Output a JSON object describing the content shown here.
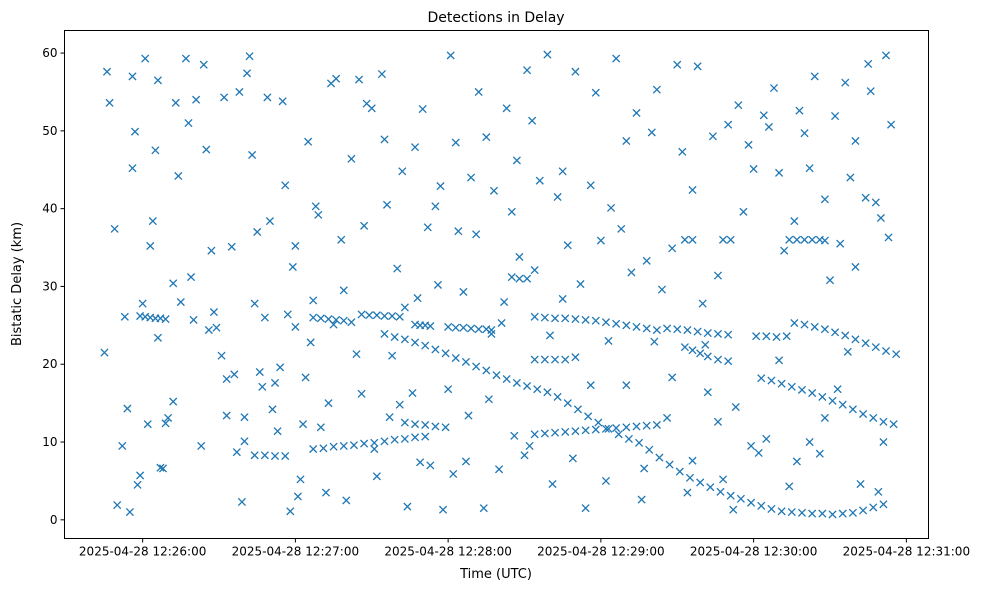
{
  "chart_data": {
    "type": "scatter",
    "title": "Detections in Delay",
    "xlabel": "Time (UTC)",
    "ylabel": "Bistatic Delay (km)",
    "x_units": "seconds after 2025-04-28 12:26:00",
    "xlim": [
      -30.7,
      308.7
    ],
    "ylim": [
      -2.4,
      62.9
    ],
    "grid": false,
    "marker": "x",
    "color": "#1f77b4",
    "x_ticks": [
      {
        "value": 0,
        "label": "2025-04-28 12:26:00"
      },
      {
        "value": 60,
        "label": "2025-04-28 12:27:00"
      },
      {
        "value": 120,
        "label": "2025-04-28 12:28:00"
      },
      {
        "value": 180,
        "label": "2025-04-28 12:29:00"
      },
      {
        "value": 240,
        "label": "2025-04-28 12:30:00"
      },
      {
        "value": 300,
        "label": "2025-04-28 12:31:00"
      }
    ],
    "y_ticks": [
      {
        "value": 0,
        "label": "0"
      },
      {
        "value": 10,
        "label": "10"
      },
      {
        "value": 20,
        "label": "20"
      },
      {
        "value": 30,
        "label": "30"
      },
      {
        "value": 40,
        "label": "40"
      },
      {
        "value": 50,
        "label": "50"
      },
      {
        "value": 60,
        "label": "60"
      }
    ],
    "points": [
      [
        95,
        23.9
      ],
      [
        99,
        23.5
      ],
      [
        103,
        23.2
      ],
      [
        107,
        22.8
      ],
      [
        111,
        22.4
      ],
      [
        115,
        21.9
      ],
      [
        119,
        21.4
      ],
      [
        123,
        20.8
      ],
      [
        127,
        20.3
      ],
      [
        131,
        19.7
      ],
      [
        135,
        19.2
      ],
      [
        139,
        18.6
      ],
      [
        143,
        18.1
      ],
      [
        147,
        17.6
      ],
      [
        151,
        17.2
      ],
      [
        155,
        16.8
      ],
      [
        159,
        16.4
      ],
      [
        163,
        15.8
      ],
      [
        167,
        15.0
      ],
      [
        171,
        14.2
      ],
      [
        175,
        13.3
      ],
      [
        179,
        12.5
      ],
      [
        183,
        11.7
      ],
      [
        187,
        11.0
      ],
      [
        191,
        10.4
      ],
      [
        195,
        9.9
      ],
      [
        199,
        9.0
      ],
      [
        203,
        8.0
      ],
      [
        207,
        7.1
      ],
      [
        211,
        6.2
      ],
      [
        215,
        5.4
      ],
      [
        219,
        4.8
      ],
      [
        223,
        4.2
      ],
      [
        227,
        3.6
      ],
      [
        231,
        3.1
      ],
      [
        235,
        2.7
      ],
      [
        239,
        2.2
      ],
      [
        243,
        1.8
      ],
      [
        247,
        1.4
      ],
      [
        251,
        1.1
      ],
      [
        255,
        1.0
      ],
      [
        259,
        0.9
      ],
      [
        263,
        0.8
      ],
      [
        267,
        0.8
      ],
      [
        271,
        0.7
      ],
      [
        275,
        0.8
      ],
      [
        279,
        0.9
      ],
      [
        283,
        1.2
      ],
      [
        287,
        1.6
      ],
      [
        291,
        2.0
      ],
      [
        154,
        11.0
      ],
      [
        158,
        11.1
      ],
      [
        162,
        11.2
      ],
      [
        166,
        11.3
      ],
      [
        170,
        11.4
      ],
      [
        174,
        11.5
      ],
      [
        178,
        11.6
      ],
      [
        182,
        11.7
      ],
      [
        186,
        11.8
      ],
      [
        190,
        11.9
      ],
      [
        194,
        12.0
      ],
      [
        198,
        12.1
      ],
      [
        202,
        12.2
      ],
      [
        -1,
        26.2
      ],
      [
        1,
        26.1
      ],
      [
        3,
        26.0
      ],
      [
        5,
        25.9
      ],
      [
        7,
        25.9
      ],
      [
        9,
        25.8
      ],
      [
        67,
        26.0
      ],
      [
        70,
        25.9
      ],
      [
        73,
        25.8
      ],
      [
        76,
        25.7
      ],
      [
        79,
        25.6
      ],
      [
        82,
        25.4
      ],
      [
        86,
        26.4
      ],
      [
        89,
        26.3
      ],
      [
        92,
        26.3
      ],
      [
        95,
        26.2
      ],
      [
        98,
        26.2
      ],
      [
        101,
        26.1
      ],
      [
        107,
        25.1
      ],
      [
        109,
        25.0
      ],
      [
        111,
        25.0
      ],
      [
        113,
        24.9
      ],
      [
        120,
        24.8
      ],
      [
        123,
        24.7
      ],
      [
        126,
        24.7
      ],
      [
        129,
        24.6
      ],
      [
        132,
        24.5
      ],
      [
        135,
        24.5
      ],
      [
        137,
        24.4
      ],
      [
        154,
        26.1
      ],
      [
        158,
        26.0
      ],
      [
        162,
        25.9
      ],
      [
        166,
        25.9
      ],
      [
        170,
        25.8
      ],
      [
        174,
        25.7
      ],
      [
        178,
        25.6
      ],
      [
        182,
        25.4
      ],
      [
        186,
        25.2
      ],
      [
        190,
        25.0
      ],
      [
        194,
        24.8
      ],
      [
        198,
        24.6
      ],
      [
        202,
        24.4
      ],
      [
        206,
        24.6
      ],
      [
        210,
        24.5
      ],
      [
        214,
        24.4
      ],
      [
        218,
        24.2
      ],
      [
        222,
        24.0
      ],
      [
        226,
        23.9
      ],
      [
        230,
        23.8
      ],
      [
        213,
        22.2
      ],
      [
        216,
        21.8
      ],
      [
        219,
        21.4
      ],
      [
        222,
        21.0
      ],
      [
        226,
        20.6
      ],
      [
        230,
        20.4
      ],
      [
        241,
        23.6
      ],
      [
        245,
        23.6
      ],
      [
        249,
        23.5
      ],
      [
        253,
        23.6
      ],
      [
        256,
        25.3
      ],
      [
        260,
        25.1
      ],
      [
        264,
        24.8
      ],
      [
        268,
        24.5
      ],
      [
        272,
        24.1
      ],
      [
        276,
        23.7
      ],
      [
        280,
        23.2
      ],
      [
        284,
        22.7
      ],
      [
        288,
        22.2
      ],
      [
        292,
        21.7
      ],
      [
        296,
        21.3
      ],
      [
        243,
        18.2
      ],
      [
        247,
        17.9
      ],
      [
        251,
        17.5
      ],
      [
        255,
        17.1
      ],
      [
        259,
        16.7
      ],
      [
        263,
        16.3
      ],
      [
        267,
        15.8
      ],
      [
        271,
        15.3
      ],
      [
        275,
        14.8
      ],
      [
        279,
        14.2
      ],
      [
        283,
        13.6
      ],
      [
        287,
        13.1
      ],
      [
        291,
        12.6
      ],
      [
        295,
        12.3
      ],
      [
        254,
        36.0
      ],
      [
        257,
        36.0
      ],
      [
        260,
        36.0
      ],
      [
        263,
        36.0
      ],
      [
        266,
        36.0
      ],
      [
        268,
        35.9
      ],
      [
        213,
        36.0
      ],
      [
        216,
        36.0
      ],
      [
        228,
        36.0
      ],
      [
        231,
        36.0
      ],
      [
        67,
        9.1
      ],
      [
        71,
        9.2
      ],
      [
        75,
        9.4
      ],
      [
        79,
        9.5
      ],
      [
        83,
        9.6
      ],
      [
        87,
        9.8
      ],
      [
        91,
        9.9
      ],
      [
        95,
        10.1
      ],
      [
        99,
        10.3
      ],
      [
        103,
        10.4
      ],
      [
        107,
        10.6
      ],
      [
        111,
        10.7
      ],
      [
        103,
        12.5
      ],
      [
        107,
        12.3
      ],
      [
        111,
        12.2
      ],
      [
        115,
        12.0
      ],
      [
        119,
        11.9
      ],
      [
        44,
        8.3
      ],
      [
        48,
        8.3
      ],
      [
        52,
        8.2
      ],
      [
        56,
        8.2
      ],
      [
        154,
        20.6
      ],
      [
        158,
        20.6
      ],
      [
        162,
        20.6
      ],
      [
        166,
        20.6
      ],
      [
        145,
        31.2
      ],
      [
        148,
        31.0
      ],
      [
        151,
        31.0
      ],
      [
        7,
        6.7
      ],
      [
        8,
        6.6
      ],
      [
        -14,
        57.6
      ],
      [
        -13,
        53.6
      ],
      [
        -15,
        21.5
      ],
      [
        -11,
        37.4
      ],
      [
        -10,
        1.9
      ],
      [
        -8,
        9.5
      ],
      [
        -6,
        14.3
      ],
      [
        -5,
        1.0
      ],
      [
        -4,
        45.2
      ],
      [
        -4,
        57.0
      ],
      [
        -3,
        49.9
      ],
      [
        -2,
        4.5
      ],
      [
        -1,
        5.7
      ],
      [
        1,
        59.3
      ],
      [
        0,
        27.8
      ],
      [
        3,
        35.2
      ],
      [
        4,
        38.4
      ],
      [
        5,
        47.5
      ],
      [
        6,
        56.5
      ],
      [
        9,
        12.4
      ],
      [
        10,
        13.1
      ],
      [
        12,
        30.4
      ],
      [
        13,
        53.6
      ],
      [
        14,
        44.2
      ],
      [
        15,
        28.0
      ],
      [
        17,
        59.3
      ],
      [
        18,
        51.0
      ],
      [
        19,
        31.2
      ],
      [
        21,
        54.0
      ],
      [
        23,
        9.5
      ],
      [
        24,
        58.5
      ],
      [
        25,
        47.6
      ],
      [
        27,
        34.6
      ],
      [
        28,
        26.7
      ],
      [
        29,
        24.7
      ],
      [
        31,
        21.1
      ],
      [
        32,
        54.3
      ],
      [
        33,
        18.1
      ],
      [
        35,
        35.1
      ],
      [
        36,
        18.7
      ],
      [
        37,
        8.7
      ],
      [
        38,
        55.0
      ],
      [
        39,
        2.3
      ],
      [
        40,
        13.2
      ],
      [
        41,
        57.4
      ],
      [
        42,
        59.6
      ],
      [
        43,
        46.9
      ],
      [
        44,
        27.8
      ],
      [
        45,
        37.0
      ],
      [
        47,
        17.1
      ],
      [
        48,
        26.0
      ],
      [
        49,
        54.3
      ],
      [
        50,
        38.4
      ],
      [
        51,
        14.2
      ],
      [
        52,
        17.6
      ],
      [
        53,
        11.4
      ],
      [
        55,
        53.8
      ],
      [
        56,
        43.0
      ],
      [
        57,
        26.4
      ],
      [
        58,
        1.1
      ],
      [
        59,
        32.5
      ],
      [
        60,
        35.2
      ],
      [
        61,
        3.0
      ],
      [
        62,
        5.2
      ],
      [
        63,
        12.3
      ],
      [
        64,
        18.3
      ],
      [
        65,
        48.6
      ],
      [
        67,
        28.2
      ],
      [
        68,
        40.3
      ],
      [
        69,
        39.2
      ],
      [
        70,
        11.9
      ],
      [
        72,
        3.5
      ],
      [
        74,
        56.1
      ],
      [
        75,
        25.1
      ],
      [
        76,
        56.7
      ],
      [
        78,
        36.0
      ],
      [
        80,
        2.5
      ],
      [
        82,
        46.4
      ],
      [
        84,
        21.3
      ],
      [
        85,
        56.6
      ],
      [
        87,
        37.8
      ],
      [
        88,
        53.5
      ],
      [
        90,
        52.9
      ],
      [
        92,
        5.6
      ],
      [
        94,
        57.3
      ],
      [
        95,
        48.9
      ],
      [
        96,
        40.5
      ],
      [
        98,
        21.1
      ],
      [
        100,
        32.3
      ],
      [
        101,
        14.8
      ],
      [
        102,
        44.8
      ],
      [
        104,
        1.7
      ],
      [
        106,
        16.3
      ],
      [
        107,
        47.9
      ],
      [
        108,
        28.5
      ],
      [
        110,
        52.8
      ],
      [
        112,
        37.6
      ],
      [
        113,
        7.0
      ],
      [
        115,
        40.3
      ],
      [
        117,
        42.9
      ],
      [
        118,
        1.3
      ],
      [
        120,
        16.8
      ],
      [
        121,
        59.7
      ],
      [
        123,
        48.5
      ],
      [
        124,
        37.1
      ],
      [
        126,
        29.3
      ],
      [
        127,
        7.5
      ],
      [
        129,
        44.0
      ],
      [
        131,
        36.7
      ],
      [
        132,
        55.0
      ],
      [
        134,
        1.5
      ],
      [
        135,
        49.2
      ],
      [
        137,
        23.9
      ],
      [
        138,
        42.3
      ],
      [
        140,
        6.5
      ],
      [
        142,
        28.0
      ],
      [
        143,
        52.9
      ],
      [
        145,
        39.6
      ],
      [
        147,
        46.2
      ],
      [
        148,
        33.8
      ],
      [
        150,
        8.3
      ],
      [
        151,
        57.8
      ],
      [
        153,
        51.3
      ],
      [
        154,
        32.1
      ],
      [
        156,
        43.6
      ],
      [
        159,
        59.8
      ],
      [
        161,
        4.6
      ],
      [
        163,
        41.5
      ],
      [
        165,
        44.8
      ],
      [
        167,
        35.3
      ],
      [
        169,
        7.9
      ],
      [
        170,
        57.6
      ],
      [
        172,
        30.3
      ],
      [
        174,
        1.5
      ],
      [
        176,
        43.0
      ],
      [
        178,
        54.9
      ],
      [
        180,
        35.9
      ],
      [
        182,
        5.0
      ],
      [
        184,
        40.1
      ],
      [
        186,
        59.3
      ],
      [
        188,
        37.4
      ],
      [
        190,
        48.7
      ],
      [
        192,
        31.8
      ],
      [
        194,
        52.3
      ],
      [
        196,
        2.6
      ],
      [
        198,
        33.3
      ],
      [
        200,
        49.8
      ],
      [
        202,
        55.3
      ],
      [
        204,
        29.6
      ],
      [
        206,
        13.1
      ],
      [
        208,
        34.9
      ],
      [
        210,
        58.5
      ],
      [
        212,
        47.3
      ],
      [
        214,
        3.5
      ],
      [
        216,
        42.4
      ],
      [
        218,
        58.3
      ],
      [
        220,
        27.8
      ],
      [
        222,
        16.4
      ],
      [
        224,
        49.3
      ],
      [
        226,
        31.4
      ],
      [
        228,
        5.2
      ],
      [
        230,
        50.8
      ],
      [
        232,
        1.3
      ],
      [
        234,
        53.3
      ],
      [
        236,
        39.6
      ],
      [
        238,
        48.2
      ],
      [
        240,
        45.1
      ],
      [
        242,
        8.6
      ],
      [
        244,
        52.0
      ],
      [
        246,
        50.5
      ],
      [
        248,
        55.5
      ],
      [
        250,
        44.6
      ],
      [
        252,
        34.6
      ],
      [
        254,
        4.3
      ],
      [
        256,
        38.4
      ],
      [
        258,
        52.6
      ],
      [
        260,
        49.7
      ],
      [
        262,
        45.2
      ],
      [
        264,
        57.0
      ],
      [
        266,
        8.5
      ],
      [
        268,
        41.2
      ],
      [
        270,
        30.8
      ],
      [
        272,
        51.9
      ],
      [
        274,
        35.5
      ],
      [
        276,
        56.2
      ],
      [
        278,
        44.0
      ],
      [
        280,
        48.7
      ],
      [
        282,
        4.6
      ],
      [
        284,
        41.4
      ],
      [
        286,
        55.1
      ],
      [
        288,
        40.8
      ],
      [
        290,
        38.8
      ],
      [
        292,
        59.7
      ],
      [
        294,
        50.8
      ],
      [
        293,
        36.3
      ],
      [
        291,
        10.0
      ],
      [
        289,
        3.6
      ],
      [
        285,
        58.6
      ],
      [
        280,
        32.5
      ],
      [
        277,
        21.6
      ],
      [
        273,
        16.8
      ],
      [
        268,
        13.1
      ],
      [
        262,
        10.0
      ],
      [
        257,
        7.5
      ],
      [
        250,
        20.5
      ],
      [
        245,
        10.4
      ],
      [
        239,
        9.5
      ],
      [
        233,
        14.5
      ],
      [
        226,
        12.6
      ],
      [
        221,
        22.5
      ],
      [
        216,
        7.6
      ],
      [
        208,
        18.3
      ],
      [
        201,
        22.9
      ],
      [
        197,
        6.6
      ],
      [
        190,
        17.3
      ],
      [
        183,
        23.0
      ],
      [
        176,
        17.3
      ],
      [
        170,
        20.9
      ],
      [
        165,
        28.4
      ],
      [
        160,
        23.7
      ],
      [
        152,
        9.5
      ],
      [
        146,
        10.8
      ],
      [
        141,
        25.3
      ],
      [
        136,
        15.5
      ],
      [
        128,
        13.4
      ],
      [
        122,
        5.9
      ],
      [
        116,
        30.2
      ],
      [
        109,
        7.4
      ],
      [
        103,
        27.3
      ],
      [
        97,
        13.2
      ],
      [
        91,
        9.1
      ],
      [
        86,
        16.2
      ],
      [
        79,
        29.5
      ],
      [
        73,
        15.0
      ],
      [
        66,
        22.8
      ],
      [
        60,
        24.8
      ],
      [
        54,
        19.6
      ],
      [
        46,
        19.0
      ],
      [
        40,
        10.1
      ],
      [
        33,
        13.4
      ],
      [
        26,
        24.4
      ],
      [
        20,
        25.7
      ],
      [
        12,
        15.2
      ],
      [
        6,
        23.4
      ],
      [
        2,
        12.3
      ],
      [
        -7,
        26.1
      ]
    ]
  }
}
